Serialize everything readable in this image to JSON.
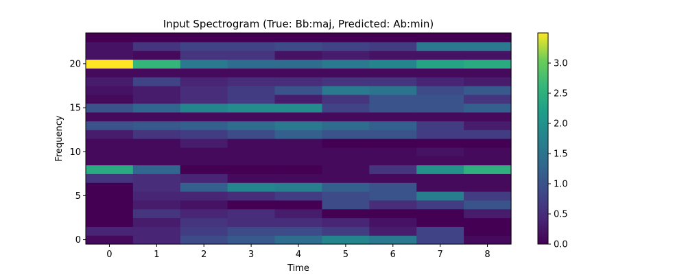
{
  "chart_data": {
    "type": "heatmap",
    "title": "Input Spectrogram (True: Bb:maj, Predicted: Ab:min)",
    "xlabel": "Time",
    "ylabel": "Frequency",
    "x_ticks": [
      "0",
      "1",
      "2",
      "3",
      "4",
      "5",
      "6",
      "7",
      "8"
    ],
    "y_ticks": [
      "0",
      "5",
      "10",
      "15",
      "20"
    ],
    "x_categories": [
      0,
      1,
      2,
      3,
      4,
      5,
      6,
      7,
      8
    ],
    "y_categories": [
      0,
      1,
      2,
      3,
      4,
      5,
      6,
      7,
      8,
      9,
      10,
      11,
      12,
      13,
      14,
      15,
      16,
      17,
      18,
      19,
      20,
      21,
      22,
      23
    ],
    "colormap": "viridis",
    "vmin": 0.0,
    "vmax": 3.5,
    "colorbar_ticks": [
      "0.0",
      "0.5",
      "1.0",
      "1.5",
      "2.0",
      "2.5",
      "3.0"
    ],
    "colorbar_tick_values": [
      0.0,
      0.5,
      1.0,
      1.5,
      2.0,
      2.5,
      3.0
    ],
    "values_by_frequency": [
      [
        0.1,
        0.4,
        0.9,
        1.1,
        1.4,
        1.8,
        1.6,
        0.8,
        0.1
      ],
      [
        0.4,
        0.4,
        0.7,
        0.9,
        0.9,
        0.7,
        0.3,
        0.8,
        0.0
      ],
      [
        0.0,
        0.3,
        0.6,
        0.5,
        0.5,
        0.4,
        0.2,
        0.0,
        0.0
      ],
      [
        0.0,
        0.6,
        0.4,
        0.5,
        0.3,
        0.0,
        0.0,
        0.0,
        0.3
      ],
      [
        0.0,
        0.3,
        0.2,
        0.0,
        0.0,
        0.9,
        0.5,
        0.7,
        1.0
      ],
      [
        0.0,
        0.4,
        0.4,
        0.5,
        0.7,
        0.9,
        1.0,
        1.7,
        0.7
      ],
      [
        0.0,
        0.5,
        1.2,
        1.8,
        1.7,
        1.2,
        1.0,
        0.1,
        0.1
      ],
      [
        0.6,
        0.5,
        0.4,
        0.1,
        0.1,
        0.1,
        0.1,
        0.1,
        0.1
      ],
      [
        2.4,
        1.3,
        0.0,
        0.0,
        0.0,
        0.1,
        0.6,
        2.0,
        2.5
      ],
      [
        0.1,
        0.1,
        0.1,
        0.1,
        0.1,
        0.1,
        0.1,
        0.1,
        0.1
      ],
      [
        0.1,
        0.1,
        0.1,
        0.1,
        0.1,
        0.1,
        0.1,
        0.2,
        0.1
      ],
      [
        0.1,
        0.1,
        0.3,
        0.1,
        0.1,
        0.0,
        0.0,
        0.0,
        0.0
      ],
      [
        0.3,
        0.6,
        0.7,
        0.9,
        1.2,
        1.0,
        1.0,
        0.7,
        0.7
      ],
      [
        1.0,
        1.1,
        1.2,
        1.4,
        1.6,
        1.4,
        1.2,
        0.7,
        0.3
      ],
      [
        0.1,
        0.1,
        0.1,
        0.1,
        0.1,
        0.1,
        0.1,
        0.1,
        0.1
      ],
      [
        1.0,
        1.3,
        1.8,
        1.9,
        1.9,
        0.8,
        1.0,
        1.0,
        1.2
      ],
      [
        0.1,
        0.3,
        0.5,
        0.7,
        0.3,
        0.6,
        1.0,
        1.0,
        0.6
      ],
      [
        0.2,
        0.3,
        0.5,
        0.7,
        1.0,
        1.6,
        1.5,
        0.9,
        1.1
      ],
      [
        0.3,
        0.8,
        0.4,
        0.5,
        0.5,
        0.6,
        0.6,
        0.4,
        0.3
      ],
      [
        0.1,
        0.1,
        0.1,
        0.1,
        0.1,
        0.1,
        0.1,
        0.1,
        0.1
      ],
      [
        3.5,
        2.6,
        1.6,
        1.4,
        1.4,
        1.6,
        1.8,
        2.3,
        2.4
      ],
      [
        0.2,
        0.1,
        0.6,
        0.6,
        0.2,
        0.3,
        0.2,
        0.2,
        0.2
      ],
      [
        0.2,
        0.6,
        0.8,
        0.8,
        0.9,
        0.8,
        0.7,
        1.6,
        1.6
      ],
      [
        0.0,
        0.0,
        0.0,
        0.0,
        0.0,
        0.0,
        0.0,
        0.0,
        0.0
      ]
    ]
  }
}
